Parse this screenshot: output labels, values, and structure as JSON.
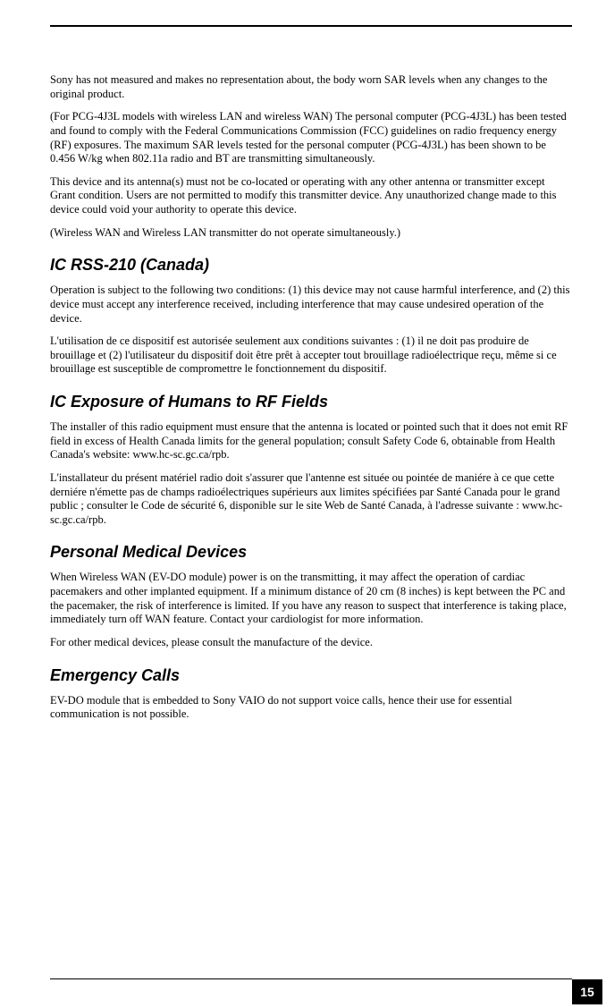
{
  "paragraphs": {
    "p1": "Sony has not measured and makes no representation about, the body worn SAR levels when any changes to the original product.",
    "p2": "(For PCG-4J3L models with wireless LAN and wireless WAN) The personal computer (PCG-4J3L) has been tested and found to comply with the Federal Communications Commission (FCC) guidelines on radio frequency energy (RF) exposures. The maximum SAR levels tested for the personal computer (PCG-4J3L) has been shown to be 0.456 W/kg when 802.11a radio and BT are transmitting simultaneously.",
    "p3": "This device and its antenna(s) must not be co-located or operating with any other antenna or transmitter except Grant condition. Users are not permitted to modify this transmitter device. Any unauthorized change made to this device could void your authority to operate this device.",
    "p4": "(Wireless WAN and Wireless LAN transmitter do not operate simultaneously.)",
    "p5": "Operation is subject to the following two conditions: (1) this device may not cause harmful interference, and (2) this device must accept any interference received, including interference that may cause undesired operation of the device.",
    "p6": "L'utilisation de ce dispositif est autorisée seulement aux conditions suivantes : (1) il ne doit pas produire de brouillage et (2) l'utilisateur du dispositif doit être prêt à accepter tout brouillage radioélectrique reçu, même si ce brouillage est susceptible de compromettre le fonctionnement du dispositif.",
    "p7": "The installer of this radio equipment must ensure that the antenna is located or pointed such that it does not emit RF field in excess of Health Canada limits for the general population; consult Safety Code 6, obtainable from Health Canada's website: www.hc-sc.gc.ca/rpb.",
    "p8": "L'installateur du présent matériel radio doit s'assurer que l'antenne est située ou pointée de maniére à ce que cette derniére n'émette pas de champs radioélectriques supérieurs aux limites spécifiées par Santé Canada pour le grand public ; consulter le Code de sécurité 6, disponible sur le site Web de Santé Canada, à l'adresse suivante : www.hc-sc.gc.ca/rpb.",
    "p9": "When Wireless WAN (EV-DO module) power is on the transmitting, it may affect the operation of cardiac pacemakers and other implanted equipment. If a minimum distance of 20 cm (8 inches) is kept between the PC and the pacemaker, the risk of interference is limited. If you have any reason to suspect that interference is taking place, immediately turn off WAN feature. Contact your cardiologist for more information.",
    "p10": "For other medical devices, please consult the manufacture of the device.",
    "p11": "EV-DO module that is embedded to Sony VAIO do not support voice calls, hence their use for essential communication is not possible."
  },
  "headings": {
    "h1": "IC RSS-210 (Canada)",
    "h2": "IC Exposure of Humans to RF Fields",
    "h3": "Personal Medical Devices",
    "h4": "Emergency Calls"
  },
  "page_number": "15",
  "colors": {
    "text": "#000000",
    "background": "#ffffff",
    "page_box_bg": "#000000",
    "page_box_fg": "#ffffff"
  }
}
